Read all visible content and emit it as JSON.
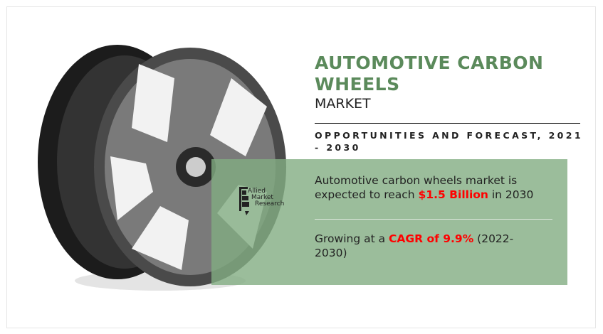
{
  "title": "AUTOMOTIVE CARBON WHEELS",
  "subtitle": "MARKET",
  "tagline": "OPPORTUNITIES AND FORECAST, 2021 - 2030",
  "stat1": {
    "prefix": "Automotive carbon wheels market is expected to reach ",
    "highlight": "$1.5 Billion",
    "suffix": " in 2030"
  },
  "stat2": {
    "prefix": "Growing at a ",
    "highlight": "CAGR of 9.9%",
    "suffix": " (2022-2030)"
  },
  "logo": {
    "lines": [
      "Allied",
      "Market",
      "Research"
    ]
  },
  "colors": {
    "title": "#5b8a5b",
    "highlight": "#ff0000",
    "box": "#9aba9a"
  }
}
